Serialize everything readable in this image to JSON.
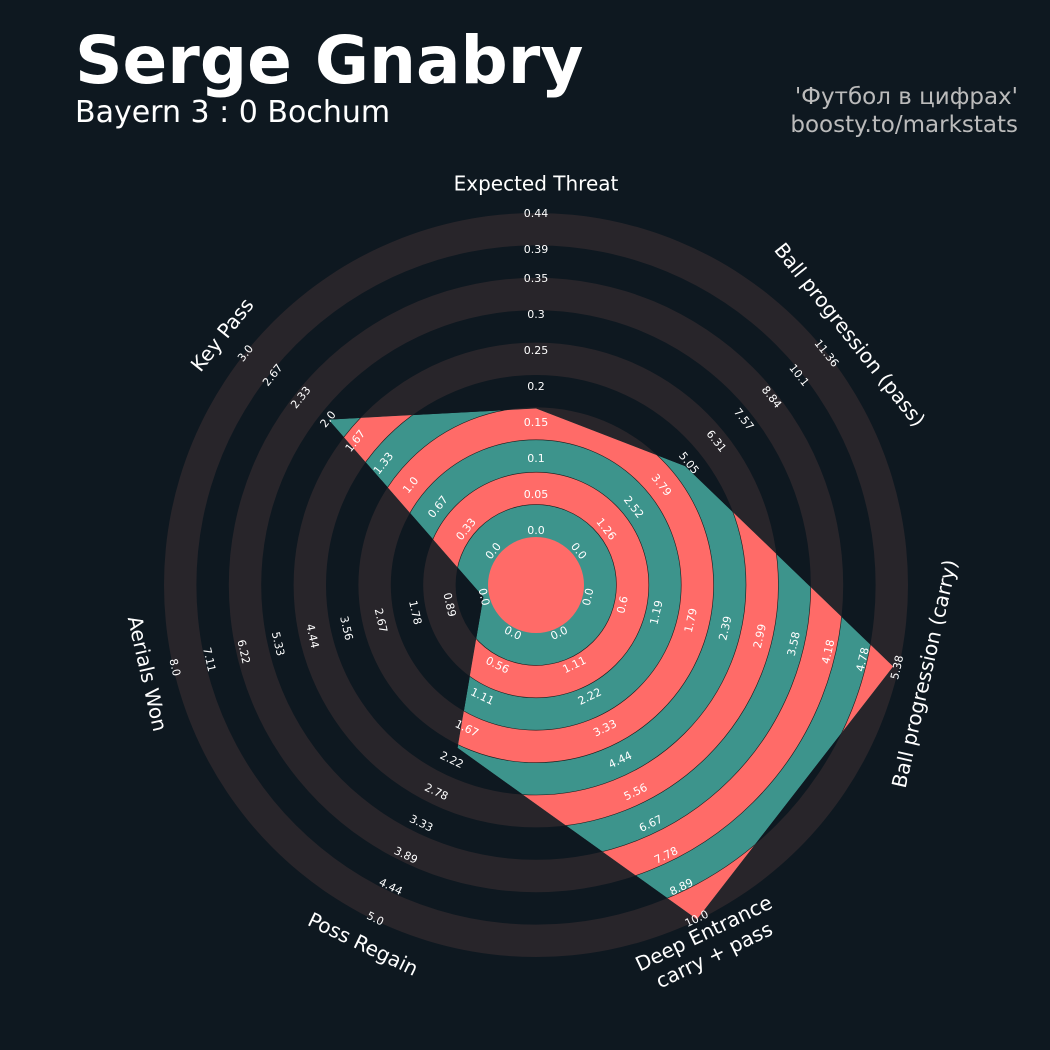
{
  "chart_data": {
    "type": "radar",
    "title": "Serge Gnabry",
    "subtitle": "Bayern 3 : 0 Bochum",
    "credits": [
      "'Футбол в цифрах'",
      "boosty.to/markstats"
    ],
    "ring_colors": [
      "#28252a",
      "#0e1820"
    ],
    "fill_colors": [
      "#ff6b68",
      "#3d948c"
    ],
    "axes": [
      {
        "label": [
          "Expected Threat"
        ],
        "ylim": [
          0,
          0.44
        ],
        "yticks": [
          {
            "value": 0,
            "label": "0.0"
          },
          0.05,
          0.1,
          0.15,
          0.2,
          0.25,
          0.3,
          0.35,
          0.39,
          0.44
        ]
      },
      {
        "label": [
          "Ball progression (pass)"
        ],
        "ylim": [
          0,
          11.36
        ],
        "yticks": [
          {
            "value": 0,
            "label": "0.0"
          },
          1.26,
          2.52,
          3.79,
          5.05,
          6.31,
          7.57,
          8.84,
          10.1,
          11.36
        ]
      },
      {
        "label": [
          "Ball progression (carry)"
        ],
        "ylim": [
          0,
          5.38
        ],
        "yticks": [
          {
            "value": 0,
            "label": "0.0"
          },
          0.6,
          1.19,
          1.79,
          2.39,
          2.99,
          3.58,
          4.18,
          4.78,
          5.38
        ]
      },
      {
        "label": [
          "Deep Entrance",
          "carry + pass"
        ],
        "ylim": [
          0,
          10
        ],
        "yticks": [
          {
            "value": 0,
            "label": "0.0"
          },
          1.11,
          2.22,
          3.33,
          4.44,
          5.56,
          6.67,
          7.78,
          8.89,
          {
            "value": 10,
            "label": "10.0"
          }
        ]
      },
      {
        "label": [
          "Poss Regain"
        ],
        "ylim": [
          0,
          5
        ],
        "yticks": [
          {
            "value": 0,
            "label": "0.0"
          },
          0.56,
          1.11,
          1.67,
          2.22,
          2.78,
          3.33,
          3.89,
          4.44,
          {
            "value": 5,
            "label": "5.0"
          }
        ]
      },
      {
        "label": [
          "Aerials Won"
        ],
        "ylim": [
          0,
          8
        ],
        "yticks": [
          {
            "value": 0,
            "label": "0.0"
          },
          0.89,
          1.78,
          2.67,
          3.56,
          4.44,
          5.33,
          6.22,
          7.11,
          {
            "value": 8,
            "label": "8.0"
          }
        ]
      },
      {
        "label": [
          "Key Pass"
        ],
        "ylim": [
          0,
          3
        ],
        "yticks": [
          {
            "value": 0,
            "label": "0.0"
          },
          0.33,
          0.67,
          {
            "value": 1,
            "label": "1.0"
          },
          1.33,
          1.67,
          {
            "value": 2,
            "label": "2.0"
          },
          2.33,
          2.67,
          {
            "value": 3,
            "label": "3.0"
          }
        ]
      }
    ],
    "values": [
      0.17,
      4.9,
      5.3,
      10,
      2,
      0,
      2
    ]
  }
}
